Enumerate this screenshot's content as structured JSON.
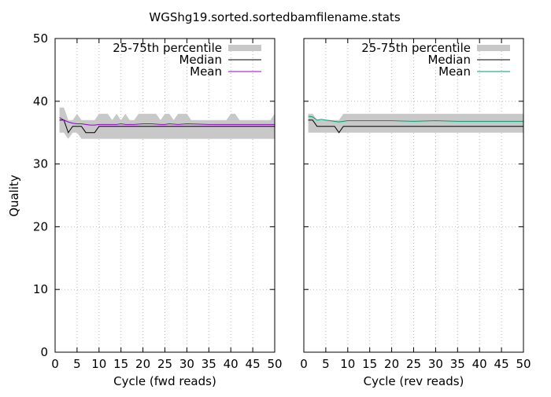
{
  "chart_data": {
    "type": "line",
    "title": "WGShg19.sorted.sortedbamfilename.stats",
    "ylabel": "Quality",
    "legend_position": "top-right",
    "grid": true,
    "panels": [
      {
        "xlabel": "Cycle (fwd reads)",
        "xlim": [
          0,
          50
        ],
        "ylim": [
          0,
          50
        ],
        "xticks": [
          0,
          5,
          10,
          15,
          20,
          25,
          30,
          35,
          40,
          45,
          50
        ],
        "yticks": [
          0,
          10,
          20,
          30,
          40,
          50
        ],
        "mean_color": "#9400d3",
        "series": [
          {
            "name": "25-75th percentile",
            "kind": "band",
            "x": [
              1,
              2,
              3,
              4,
              5,
              6,
              7,
              8,
              9,
              10,
              11,
              12,
              13,
              14,
              15,
              16,
              17,
              18,
              19,
              20,
              21,
              22,
              23,
              24,
              25,
              26,
              27,
              28,
              29,
              30,
              31,
              32,
              33,
              34,
              35,
              36,
              37,
              38,
              39,
              40,
              41,
              42,
              43,
              44,
              45,
              46,
              47,
              48,
              49,
              50
            ],
            "lower": [
              35,
              35,
              34,
              35,
              35,
              34,
              34,
              34,
              34,
              34,
              34,
              34,
              34,
              34,
              34,
              34,
              34,
              34,
              34,
              34,
              34,
              34,
              34,
              34,
              34,
              34,
              34,
              34,
              34,
              34,
              34,
              34,
              34,
              34,
              34,
              34,
              34,
              34,
              34,
              34,
              34,
              34,
              34,
              34,
              34,
              34,
              34,
              34,
              34,
              34
            ],
            "upper": [
              39,
              39,
              37,
              37,
              38,
              37,
              37,
              37,
              37,
              38,
              38,
              38,
              37,
              38,
              37,
              38,
              37,
              37,
              38,
              38,
              38,
              38,
              38,
              37,
              38,
              38,
              37,
              38,
              38,
              38,
              37,
              37,
              37,
              37,
              37,
              37,
              37,
              37,
              37,
              38,
              38,
              37,
              37,
              37,
              37,
              37,
              37,
              37,
              37,
              38
            ]
          },
          {
            "name": "Median",
            "kind": "line",
            "x": [
              1,
              2,
              3,
              4,
              5,
              6,
              7,
              8,
              9,
              10,
              15,
              20,
              25,
              30,
              35,
              40,
              45,
              50
            ],
            "values": [
              37,
              37,
              35,
              36,
              36,
              36,
              35,
              35,
              35,
              36,
              36,
              36,
              36,
              36,
              36,
              36,
              36,
              36
            ]
          },
          {
            "name": "Mean",
            "kind": "line",
            "x": [
              1,
              2,
              3,
              4,
              5,
              6,
              7,
              8,
              9,
              10,
              12,
              14,
              15,
              16,
              18,
              20,
              22,
              24,
              25,
              26,
              28,
              30,
              35,
              40,
              45,
              50
            ],
            "values": [
              37.4,
              37.0,
              36.7,
              36.5,
              36.4,
              36.4,
              36.3,
              36.2,
              36.2,
              36.3,
              36.3,
              36.3,
              36.4,
              36.3,
              36.3,
              36.4,
              36.4,
              36.3,
              36.3,
              36.4,
              36.3,
              36.4,
              36.3,
              36.3,
              36.3,
              36.3
            ]
          }
        ]
      },
      {
        "xlabel": "Cycle (rev reads)",
        "xlim": [
          0,
          50
        ],
        "ylim": [
          0,
          50
        ],
        "xticks": [
          0,
          5,
          10,
          15,
          20,
          25,
          30,
          35,
          40,
          45,
          50
        ],
        "yticks": [
          0,
          10,
          20,
          30,
          40,
          50
        ],
        "mean_color": "#009e73",
        "series": [
          {
            "name": "25-75th percentile",
            "kind": "band",
            "x": [
              1,
              2,
              3,
              4,
              5,
              6,
              7,
              8,
              9,
              10,
              50
            ],
            "lower": [
              35,
              35,
              35,
              35,
              35,
              35,
              35,
              35,
              35,
              35,
              35
            ],
            "upper": [
              38,
              38,
              37,
              37,
              37,
              37,
              37,
              37,
              38,
              38,
              38
            ]
          },
          {
            "name": "Median",
            "kind": "line",
            "x": [
              1,
              2,
              3,
              4,
              5,
              6,
              7,
              8,
              9,
              10,
              50
            ],
            "values": [
              37,
              37,
              36,
              36,
              36,
              36,
              36,
              35,
              36,
              36,
              36
            ]
          },
          {
            "name": "Mean",
            "kind": "line",
            "x": [
              1,
              2,
              3,
              4,
              5,
              6,
              7,
              8,
              9,
              10,
              15,
              20,
              25,
              30,
              35,
              40,
              45,
              50
            ],
            "values": [
              37.6,
              37.5,
              37.0,
              37.1,
              37.0,
              36.9,
              36.8,
              36.7,
              36.8,
              36.9,
              36.9,
              36.9,
              36.8,
              36.9,
              36.8,
              36.8,
              36.8,
              36.8
            ]
          }
        ]
      }
    ]
  }
}
